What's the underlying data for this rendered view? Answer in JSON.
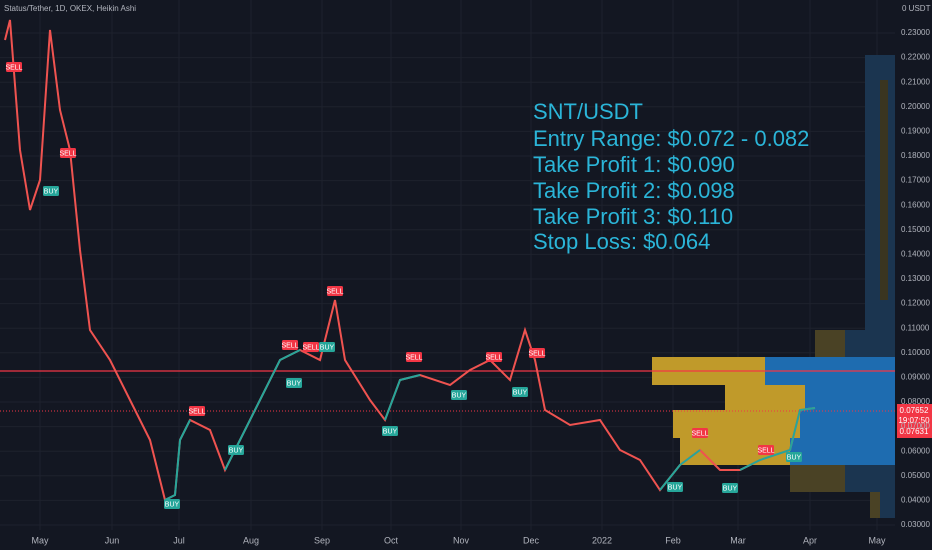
{
  "header": {
    "symbol": "Status/Tether, 1D, OKEX, Heikin Ashi",
    "currency": "0 USDT"
  },
  "price_axis": [
    "0.23000",
    "0.22000",
    "0.21000",
    "0.20000",
    "0.19000",
    "0.18000",
    "0.17000",
    "0.16000",
    "0.15000",
    "0.14000",
    "0.13000",
    "0.12000",
    "0.11000",
    "0.10000",
    "0.09000",
    "0.08000",
    "0.07000",
    "0.06000",
    "0.05000",
    "0.04000",
    "0.03000"
  ],
  "time_axis": [
    "May",
    "Jun",
    "Jul",
    "Aug",
    "Sep",
    "Oct",
    "Nov",
    "Dec",
    "2022",
    "Feb",
    "Mar",
    "Apr",
    "May"
  ],
  "price_badge": {
    "last": "0.07652",
    "countdown": "19:07:50",
    "other": "0.07631"
  },
  "annotation": [
    "SNT/USDT",
    "Entry Range: $0.072 - 0.082",
    "Take Profit 1: $0.090",
    "Take Profit 2: $0.098",
    "Take Profit 3: $0.110",
    "Stop Loss: $0.064"
  ],
  "signals": [
    "SELL",
    "SELL",
    "BUY",
    "SELL",
    "BUY",
    "BUY",
    "SELL",
    "BUY",
    "SELL",
    "BUY",
    "SELL",
    "SELL",
    "BUY",
    "BUY",
    "SELL",
    "BUY",
    "SELL",
    "SELL",
    "SELL",
    "BUY",
    "BUY",
    "BUY"
  ]
}
